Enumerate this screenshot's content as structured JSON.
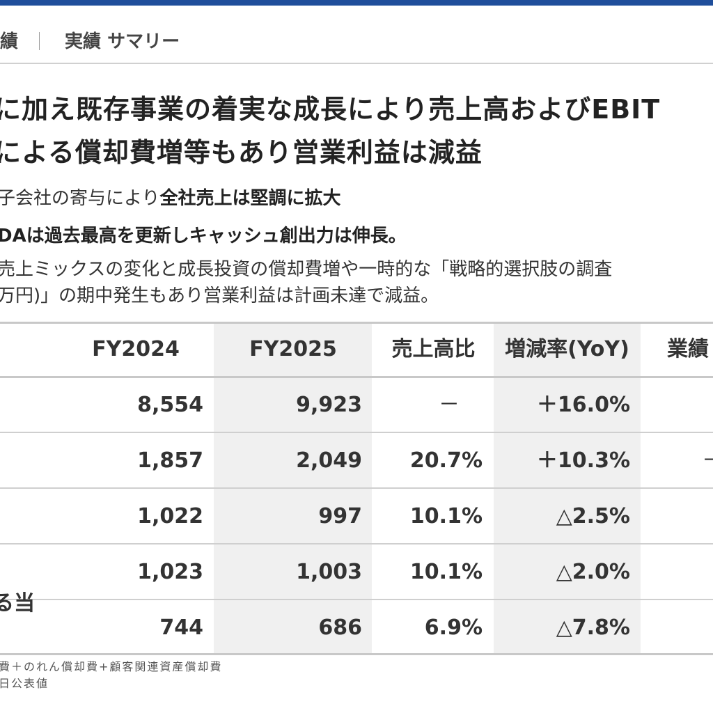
{
  "breadcrumb": {
    "section": "績",
    "page": "実績 サマリー"
  },
  "headline": {
    "line1": "に加え既存事業の着実な成長により売上高およびEBIT",
    "line2": "による償却費増等もあり営業利益は減益"
  },
  "bullets": {
    "b1_normal": "子会社の寄与により",
    "b1_bold": "全社売上は堅調に拡大",
    "b2_bold": "DAは過去最高を更新しキャッシュ創出力は伸長。",
    "b3": "売上ミックスの変化と成長投資の償却費増や一時的な「戦略的選択肢の調査",
    "b4": "万円)」の期中発生もあり営業利益は計画未達で減益。"
  },
  "table": {
    "headers": [
      "FY2024",
      "FY2025",
      "売上高比",
      "増減率(YoY)",
      "業績"
    ],
    "rows": [
      {
        "label": "",
        "fy2024": "8,554",
        "fy2025": "9,923",
        "ratio": "－",
        "yoy": "＋16.0%",
        "extra": ""
      },
      {
        "label": "",
        "fy2024": "1,857",
        "fy2025": "2,049",
        "ratio": "20.7%",
        "yoy": "＋10.3%",
        "extra": "－"
      },
      {
        "label": "",
        "fy2024": "1,022",
        "fy2025": "997",
        "ratio": "10.1%",
        "yoy": "△2.5%",
        "extra": ""
      },
      {
        "label": "",
        "fy2024": "1,023",
        "fy2025": "1,003",
        "ratio": "10.1%",
        "yoy": "△2.0%",
        "extra": ""
      },
      {
        "label": "る当",
        "fy2024": "744",
        "fy2025": "686",
        "ratio": "6.9%",
        "yoy": "△7.8%",
        "extra": ""
      }
    ]
  },
  "footnotes": {
    "f1": "費＋のれん償却費+顧客関連資産償却費",
    "f2": "日公表値"
  },
  "colors": {
    "accent_bar": "#1f4e9b",
    "highlight_column": "#f0f0f0"
  }
}
